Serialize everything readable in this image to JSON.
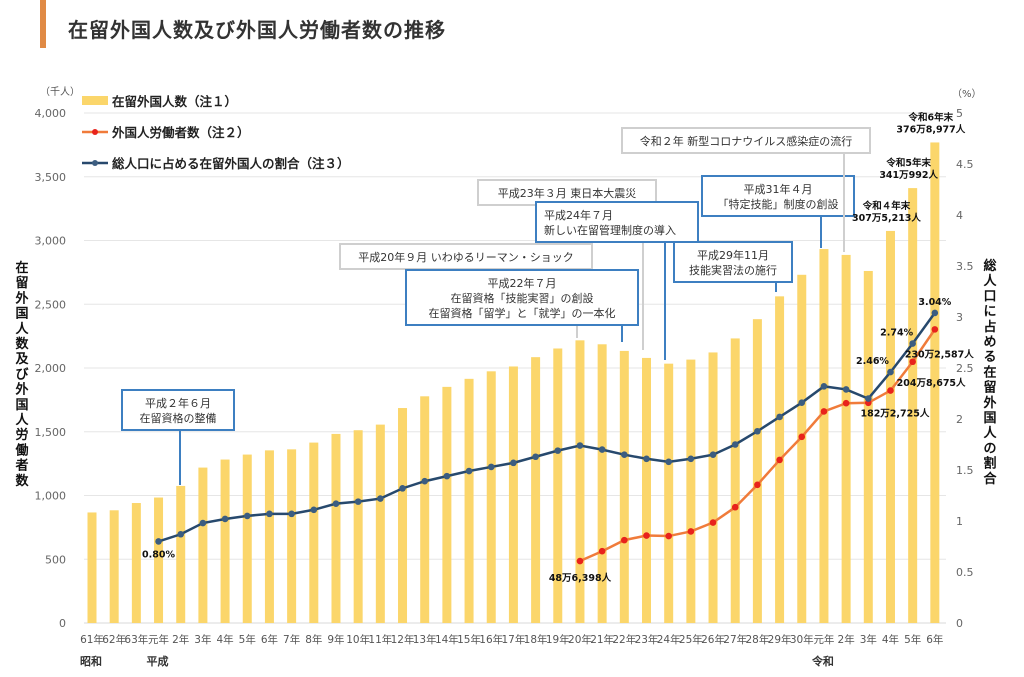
{
  "header": {
    "title": "在留外国人数及び外国人労働者数の推移"
  },
  "colors": {
    "bars": "#fbd66b",
    "workers": "#f07b3a",
    "workers_marker": "#e8231c",
    "ratio": "#27496d",
    "accent": "#e08a45",
    "ann_blue": "#3d7fc1",
    "ann_gray": "#cfcfcf",
    "grid": "#e6e6e6"
  },
  "chart_data": {
    "type": "bar",
    "title": "在留外国人数及び外国人労働者数の推移",
    "left_unit": "（千人）",
    "right_unit": "（%）",
    "ylabel": "在留外国人数及び外国人労働者数",
    "y2label": "総人口に占める在留外国人の割合",
    "ylim": [
      0,
      4000
    ],
    "y2lim": [
      0,
      5
    ],
    "yticks": [
      "0",
      "500",
      "1,000",
      "1,500",
      "2,000",
      "2,500",
      "3,000",
      "3,500",
      "4,000"
    ],
    "y2ticks": [
      "0",
      "0.5",
      "1",
      "1.5",
      "2",
      "2.5",
      "3",
      "3.5",
      "4",
      "4.5",
      "5"
    ],
    "grid": true,
    "legend_position": "top-left",
    "categories": [
      "61年",
      "62年",
      "63年",
      "元年",
      "2年",
      "3年",
      "4年",
      "5年",
      "6年",
      "7年",
      "8年",
      "9年",
      "10年",
      "11年",
      "12年",
      "13年",
      "14年",
      "15年",
      "16年",
      "17年",
      "18年",
      "19年",
      "20年",
      "21年",
      "22年",
      "23年",
      "24年",
      "25年",
      "26年",
      "27年",
      "28年",
      "29年",
      "30年",
      "元年",
      "2年",
      "3年",
      "4年",
      "5年",
      "6年"
    ],
    "eras": [
      {
        "label": "昭和",
        "index": 0
      },
      {
        "label": "平成",
        "index": 3
      },
      {
        "label": "令和",
        "index": 33
      }
    ],
    "series": [
      {
        "name": "在留外国人数（注１）",
        "type": "bar",
        "values": [
          867,
          884,
          941,
          984,
          1075,
          1219,
          1282,
          1321,
          1354,
          1362,
          1415,
          1483,
          1512,
          1556,
          1686,
          1778,
          1852,
          1915,
          1974,
          2012,
          2085,
          2153,
          2217,
          2186,
          2134,
          2079,
          2034,
          2066,
          2122,
          2232,
          2383,
          2562,
          2731,
          2933,
          2887,
          2761,
          3075,
          3411,
          3769
        ]
      },
      {
        "name": "外国人労働者数（注２）",
        "type": "line",
        "axis": "left",
        "values": [
          null,
          null,
          null,
          null,
          null,
          null,
          null,
          null,
          null,
          null,
          null,
          null,
          null,
          null,
          null,
          null,
          null,
          null,
          null,
          null,
          null,
          null,
          486,
          563,
          650,
          686,
          682,
          718,
          788,
          908,
          1084,
          1279,
          1460,
          1659,
          1724,
          1727,
          1823,
          2049,
          2303
        ]
      },
      {
        "name": "総人口に占める在留外国人の割合（注３）",
        "type": "line",
        "axis": "right",
        "values": [
          null,
          null,
          null,
          0.8,
          0.87,
          0.98,
          1.02,
          1.05,
          1.07,
          1.07,
          1.11,
          1.17,
          1.19,
          1.22,
          1.32,
          1.39,
          1.44,
          1.49,
          1.53,
          1.57,
          1.63,
          1.69,
          1.74,
          1.7,
          1.65,
          1.61,
          1.58,
          1.61,
          1.65,
          1.75,
          1.88,
          2.02,
          2.16,
          2.32,
          2.29,
          2.2,
          2.46,
          2.74,
          3.04
        ]
      }
    ],
    "data_labels": [
      {
        "text": "0.80%",
        "series": 2,
        "index": 3
      },
      {
        "text": "2.46%",
        "series": 2,
        "index": 36
      },
      {
        "text": "2.74%",
        "series": 2,
        "index": 37
      },
      {
        "text": "3.04%",
        "series": 2,
        "index": 38
      },
      {
        "text": "48万6,398人",
        "series": 1,
        "index": 22
      },
      {
        "text": "182万2,725人",
        "series": 1,
        "index": 36
      },
      {
        "text": "204万8,675人",
        "series": 1,
        "index": 37
      },
      {
        "text": "230万2,587人",
        "series": 1,
        "index": 38
      }
    ],
    "bar_labels": [
      {
        "lines": [
          "令和４年末",
          "307万5,213人"
        ],
        "index": 36
      },
      {
        "lines": [
          "令和5年末",
          "341万992人"
        ],
        "index": 37
      },
      {
        "lines": [
          "令和6年末",
          "376万8,977人"
        ],
        "index": 38
      }
    ],
    "annotations": [
      {
        "lines": [
          "平成２年６月",
          "在留資格の整備"
        ],
        "style": "blue",
        "index": 4
      },
      {
        "lines": [
          "平成20年９月 いわゆるリーマン・ショック"
        ],
        "style": "gray",
        "index": 22
      },
      {
        "lines": [
          "平成22年７月",
          "在留資格「技能実習」の創設",
          "在留資格「留学」と「就学」の一本化"
        ],
        "style": "blue",
        "index": 24
      },
      {
        "lines": [
          "平成23年３月 東日本大震災"
        ],
        "style": "gray",
        "index": 25
      },
      {
        "lines": [
          "平成24年７月",
          "新しい在留管理制度の導入"
        ],
        "style": "blue",
        "index": 26
      },
      {
        "lines": [
          "平成29年11月",
          "技能実習法の施行"
        ],
        "style": "blue",
        "index": 31
      },
      {
        "lines": [
          "平成31年４月",
          "「特定技能」制度の創設"
        ],
        "style": "blue",
        "index": 33
      },
      {
        "lines": [
          "令和２年 新型コロナウイルス感染症の流行"
        ],
        "style": "gray",
        "index": 34
      }
    ]
  }
}
